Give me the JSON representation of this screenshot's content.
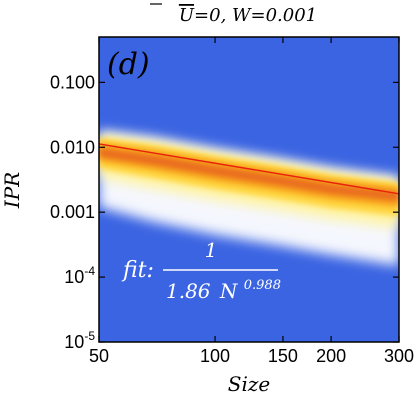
{
  "chart_data": {
    "type": "heatmap",
    "title": "U=0, W=0.001",
    "title_parts": {
      "symbol": "U",
      "rest": "=0, W=0.001"
    },
    "panel_label": "(d)",
    "xlabel": "Size",
    "ylabel": "IPR",
    "x_scale": "log",
    "y_scale": "log",
    "xlim": [
      50,
      300
    ],
    "ylim": [
      1e-05,
      0.5
    ],
    "x_ticks": [
      50,
      100,
      150,
      200,
      300
    ],
    "x_tick_labels": [
      "50",
      "100",
      "150",
      "200",
      "300"
    ],
    "y_ticks": [
      1e-05,
      0.0001,
      0.001,
      0.01,
      0.1
    ],
    "y_tick_labels": [
      {
        "base": "10",
        "exp": "-5"
      },
      {
        "base": "10",
        "exp": "-4"
      },
      {
        "base": "0.001",
        "exp": ""
      },
      {
        "base": "0.010",
        "exp": ""
      },
      {
        "base": "0.100",
        "exp": ""
      }
    ],
    "grid": false,
    "background_color": "#3b64e2",
    "density_band": {
      "description_values": "IPR distribution across samples vs system size",
      "x": [
        50,
        70,
        100,
        150,
        200,
        300
      ],
      "upper_edge": [
        0.018,
        0.014,
        0.0095,
        0.0065,
        0.0048,
        0.0035
      ],
      "peak": [
        0.008,
        0.006,
        0.0042,
        0.0029,
        0.0022,
        0.0017
      ],
      "lower_edge": [
        0.0012,
        0.0007,
        0.00045,
        0.0003,
        0.00022,
        0.00015
      ]
    },
    "fit": {
      "label_prefix": "fit:",
      "numerator": "1",
      "coefficient": "1.86",
      "variable": "N",
      "exponent": "0.988",
      "a": 1.86,
      "b": 0.988,
      "color": "#e8200a"
    }
  }
}
